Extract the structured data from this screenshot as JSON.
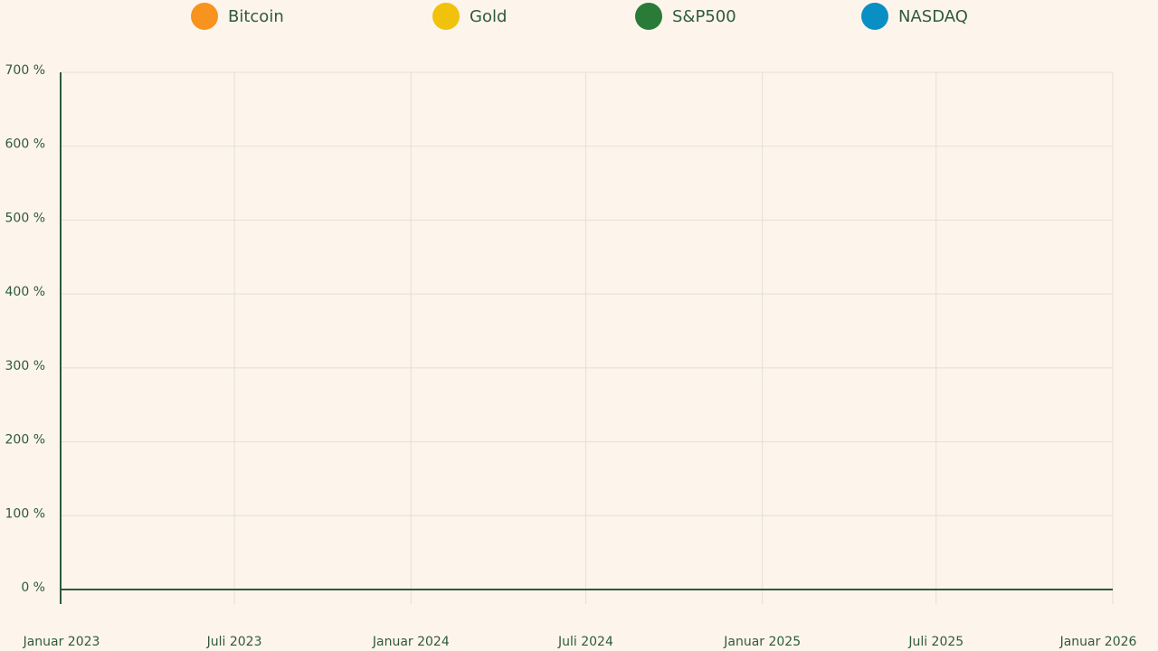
{
  "chart_data": {
    "type": "line",
    "title": "",
    "xlabel": "",
    "ylabel": "",
    "ylim": [
      0,
      700
    ],
    "y_unit": "%",
    "y_ticks": [
      {
        "value": 0,
        "label": "0 %"
      },
      {
        "value": 100,
        "label": "100 %"
      },
      {
        "value": 200,
        "label": "200 %"
      },
      {
        "value": 300,
        "label": "300 %"
      },
      {
        "value": 400,
        "label": "400 %"
      },
      {
        "value": 500,
        "label": "500 %"
      },
      {
        "value": 600,
        "label": "600 %"
      },
      {
        "value": 700,
        "label": "700 %"
      }
    ],
    "x_ticks": [
      {
        "date": "2023-01-01",
        "label": "Januar 2023"
      },
      {
        "date": "2023-07-01",
        "label": "Juli 2023"
      },
      {
        "date": "2024-01-01",
        "label": "Januar 2024"
      },
      {
        "date": "2024-07-01",
        "label": "Juli 2024"
      },
      {
        "date": "2025-01-01",
        "label": "Januar 2025"
      },
      {
        "date": "2025-07-01",
        "label": "Juli 2025"
      },
      {
        "date": "2026-01-01",
        "label": "Januar 2026"
      }
    ],
    "xlim": [
      "2023-01-01",
      "2026-01-01"
    ],
    "grid": true,
    "legend_position": "top",
    "series": [
      {
        "name": "Bitcoin",
        "color": "#f7931e",
        "values": [],
        "x": []
      },
      {
        "name": "Gold",
        "color": "#f0c20c",
        "values": [],
        "x": []
      },
      {
        "name": "S&P500",
        "color": "#2a7a38",
        "values": [],
        "x": []
      },
      {
        "name": "NASDAQ",
        "color": "#0a8fc4",
        "values": [],
        "x": []
      }
    ]
  }
}
